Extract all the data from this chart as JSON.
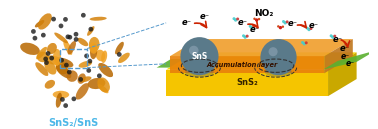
{
  "title": "",
  "bg_color": "#ffffff",
  "label_sns2_sns": "SnS₂/SnS",
  "label_sns2_sns_color": "#4db8e8",
  "label_sns": "SnS",
  "label_sns2": "SnS₂",
  "label_accum": "Accumulation layer",
  "label_no2": "NO₂",
  "label_eminus": "e⁻",
  "sphere_color": "#5a7a8a",
  "sphere_shadow": "#3a5a6a",
  "layer_orange": "#e8820a",
  "layer_yellow": "#f5c500",
  "layer_green": "#5ab030",
  "layer_dark_orange": "#cc6600",
  "flower_color1": "#d4820a",
  "flower_color2": "#b86800",
  "flower_color3": "#f0a020",
  "dot_color": "#1a1a1a",
  "arrow_red": "#cc2200",
  "dashed_color": "#333333",
  "no2_n_color": "#1a1aaa",
  "no2_o_color": "#cc3333",
  "mol_cyan": "#44cccc",
  "mol_red": "#cc3333",
  "text_label_color": "#222222",
  "connector_color": "#5599cc",
  "figsize": [
    3.78,
    1.29
  ],
  "dpi": 100
}
